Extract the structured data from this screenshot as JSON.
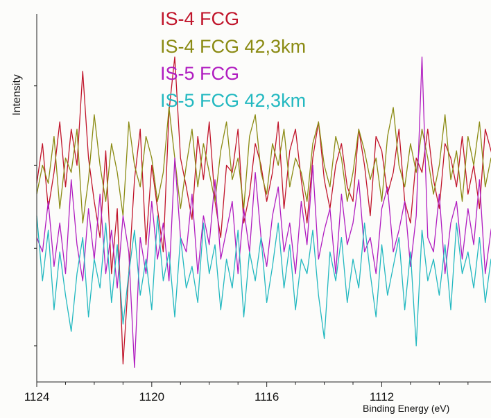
{
  "chart_data": {
    "type": "line",
    "title": "",
    "xlabel": "Binding Energy (eV)",
    "ylabel": "Intensity",
    "x_reversed": true,
    "xlim": [
      1124,
      1108.2
    ],
    "ylim": [
      0,
      100
    ],
    "x_ticks": [
      1124,
      1120,
      1116,
      1112
    ],
    "x_tick_labels": [
      "1124",
      "1120",
      "1116",
      "1112"
    ],
    "grid": false,
    "legend_position": "top-left (inside plot)",
    "x_step": 0.2,
    "series": [
      {
        "name": "IS-4 FCG",
        "color": "#c0142a",
        "values": [
          55,
          66,
          48,
          58,
          72,
          54,
          70,
          60,
          86,
          62,
          50,
          40,
          64,
          30,
          48,
          5,
          30,
          56,
          70,
          38,
          60,
          48,
          36,
          75,
          90,
          62,
          54,
          45,
          68,
          56,
          72,
          50,
          40,
          60,
          58,
          70,
          44,
          52,
          66,
          60,
          50,
          58,
          72,
          48,
          64,
          70,
          56,
          44,
          62,
          72,
          56,
          48,
          60,
          66,
          54,
          50,
          70,
          60,
          46,
          68,
          64,
          52,
          58,
          70,
          50,
          44,
          62,
          58,
          70,
          56,
          48,
          66,
          62,
          54,
          68,
          52,
          60,
          48,
          70,
          64,
          58,
          50,
          66,
          72,
          54,
          60,
          48
        ]
      },
      {
        "name": "IS-4 FCG 42,3km",
        "color": "#8a8a12",
        "values": [
          52,
          60,
          55,
          68,
          48,
          62,
          58,
          70,
          44,
          56,
          74,
          60,
          50,
          66,
          58,
          46,
          72,
          60,
          54,
          68,
          62,
          50,
          58,
          76,
          62,
          48,
          60,
          70,
          54,
          66,
          58,
          50,
          64,
          72,
          56,
          62,
          48,
          68,
          74,
          58,
          52,
          66,
          60,
          70,
          54,
          62,
          58,
          50,
          66,
          72,
          60,
          54,
          68,
          62,
          50,
          58,
          70,
          64,
          56,
          62,
          50,
          68,
          76,
          60,
          54,
          66,
          58,
          70,
          62,
          52,
          60,
          74,
          56,
          64,
          50,
          68,
          60,
          72,
          54,
          62,
          58,
          66,
          50,
          70,
          60,
          56,
          62
        ]
      },
      {
        "name": "IS-5 FCG",
        "color": "#b01cc0",
        "values": [
          40,
          36,
          50,
          32,
          44,
          30,
          56,
          38,
          28,
          48,
          34,
          52,
          30,
          42,
          26,
          46,
          36,
          4,
          40,
          30,
          50,
          34,
          44,
          28,
          62,
          40,
          36,
          52,
          30,
          46,
          38,
          56,
          34,
          42,
          50,
          30,
          48,
          36,
          58,
          40,
          32,
          46,
          54,
          36,
          44,
          30,
          50,
          38,
          60,
          34,
          42,
          48,
          30,
          52,
          38,
          44,
          56,
          36,
          40,
          30,
          48,
          54,
          36,
          42,
          50,
          32,
          46,
          90,
          40,
          36,
          52,
          30,
          44,
          50,
          34,
          48,
          38,
          56,
          30,
          42,
          50,
          36,
          46,
          34,
          52,
          40,
          44
        ]
      },
      {
        "name": "IS-5 FCG 42,3km",
        "color": "#22b8c0",
        "values": [
          46,
          28,
          42,
          20,
          36,
          24,
          14,
          30,
          40,
          18,
          34,
          26,
          44,
          22,
          38,
          16,
          30,
          42,
          24,
          34,
          20,
          46,
          28,
          36,
          18,
          40,
          26,
          32,
          22,
          44,
          30,
          38,
          20,
          34,
          26,
          42,
          18,
          36,
          28,
          40,
          22,
          32,
          44,
          26,
          38,
          20,
          34,
          30,
          42,
          24,
          12,
          36,
          28,
          40,
          22,
          34,
          26,
          44,
          30,
          18,
          38,
          24,
          32,
          40,
          20,
          36,
          10,
          42,
          28,
          34,
          24,
          38,
          20,
          44,
          30,
          36,
          26,
          40,
          22,
          34,
          28,
          42,
          24,
          38,
          30,
          36,
          44
        ]
      }
    ]
  }
}
